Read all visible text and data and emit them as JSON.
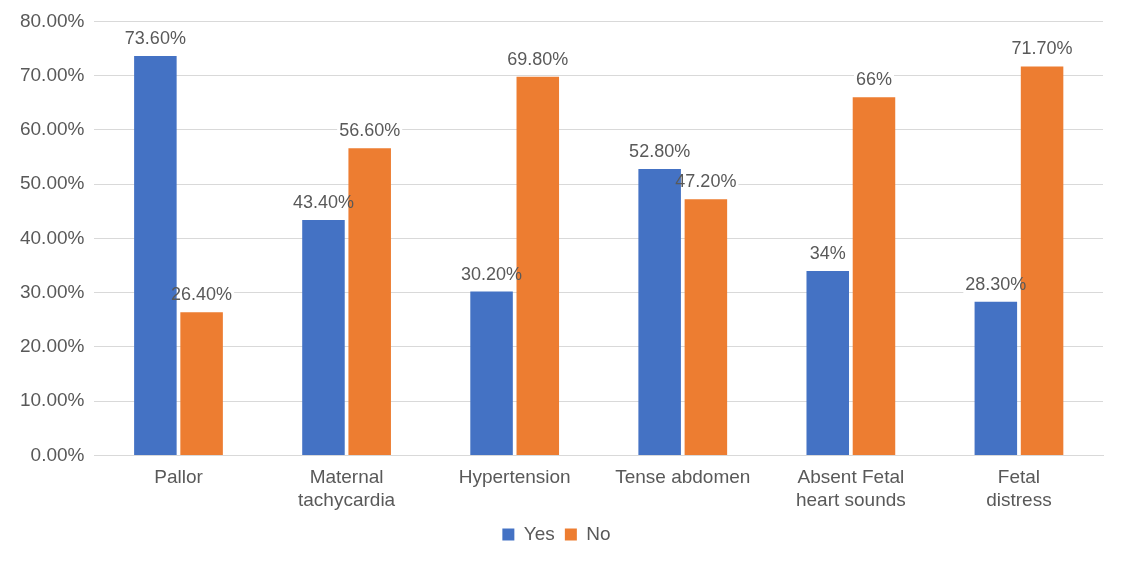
{
  "chart_data": {
    "type": "bar",
    "categories": [
      "Pallor",
      "Maternal tachycardia",
      "Hypertension",
      "Tense abdomen",
      "Absent Fetal heart sounds",
      "Fetal distress"
    ],
    "series": [
      {
        "name": "Yes",
        "color": "#4472c4",
        "values": [
          73.6,
          43.4,
          30.2,
          52.8,
          34,
          28.3
        ],
        "value_labels": [
          "73.60%",
          "43.40%",
          "30.20%",
          "52.80%",
          "34%",
          "28.30%"
        ]
      },
      {
        "name": "No",
        "color": "#ed7d31",
        "values": [
          26.4,
          56.6,
          69.8,
          47.2,
          66,
          71.7
        ],
        "value_labels": [
          "26.40%",
          "56.60%",
          "69.80%",
          "47.20%",
          "66%",
          "71.70%"
        ]
      }
    ],
    "ylim": [
      0,
      80
    ],
    "yticks": [
      {
        "value": 0,
        "label": "0.00%"
      },
      {
        "value": 10,
        "label": "10.00%"
      },
      {
        "value": 20,
        "label": "20.00%"
      },
      {
        "value": 30,
        "label": "30.00%"
      },
      {
        "value": 40,
        "label": "40.00%"
      },
      {
        "value": 50,
        "label": "50.00%"
      },
      {
        "value": 60,
        "label": "60.00%"
      },
      {
        "value": 70,
        "label": "70.00%"
      },
      {
        "value": 80,
        "label": "80.00%"
      }
    ],
    "grid": "y",
    "legend": "bottom"
  }
}
